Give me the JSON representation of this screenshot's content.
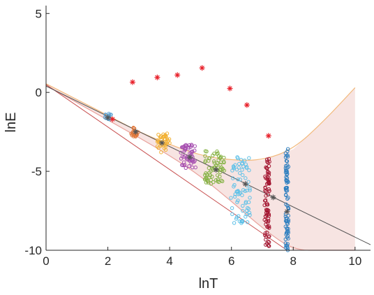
{
  "chart_data": {
    "type": "scatter",
    "title": "",
    "xlabel": "lnT",
    "ylabel": "lnE",
    "xlim": [
      0,
      10.5
    ],
    "ylim": [
      -10,
      5.5
    ],
    "xticks": [
      0,
      2,
      4,
      6,
      8,
      10
    ],
    "yticks": [
      -10,
      -5,
      0,
      5
    ],
    "grid": false,
    "legend": "none",
    "clusters": [
      {
        "x": 2.0,
        "y_min": -1.8,
        "y_max": -1.35,
        "spread": 0.12,
        "color": "#5aa0d0",
        "count": 14
      },
      {
        "x": 2.85,
        "y_min": -2.8,
        "y_max": -2.2,
        "spread": 0.14,
        "color": "#e0783c",
        "count": 20
      },
      {
        "x": 3.8,
        "y_min": -3.8,
        "y_max": -2.6,
        "spread": 0.2,
        "color": "#f2b134",
        "count": 40
      },
      {
        "x": 4.6,
        "y_min": -4.8,
        "y_max": -3.3,
        "spread": 0.25,
        "color": "#a64fb0",
        "count": 55
      },
      {
        "x": 5.45,
        "y_min": -5.8,
        "y_max": -3.7,
        "spread": 0.32,
        "color": "#86b346",
        "count": 70
      },
      {
        "x": 6.3,
        "y_min": -8.3,
        "y_max": -4.0,
        "spread": 0.32,
        "color": "#5ec1e8",
        "count": 75
      },
      {
        "x": 7.15,
        "y_min": -9.8,
        "y_max": -4.2,
        "spread": 0.08,
        "color": "#a2142f",
        "count": 80
      },
      {
        "x": 7.8,
        "y_min": -10.0,
        "y_max": -3.3,
        "spread": 0.05,
        "color": "#2f7fbf",
        "count": 80
      }
    ],
    "red_stars": [
      {
        "x": 2.15,
        "y": -1.7
      },
      {
        "x": 2.8,
        "y": 0.65
      },
      {
        "x": 3.6,
        "y": 0.95
      },
      {
        "x": 4.25,
        "y": 1.1
      },
      {
        "x": 5.05,
        "y": 1.55
      },
      {
        "x": 5.95,
        "y": 0.25
      },
      {
        "x": 6.5,
        "y": -0.8
      },
      {
        "x": 7.2,
        "y": -2.75
      }
    ],
    "gray_stars": [
      {
        "x": 2.0,
        "y": -1.6
      },
      {
        "x": 2.9,
        "y": -2.5
      },
      {
        "x": 3.75,
        "y": -3.2
      },
      {
        "x": 4.65,
        "y": -4.1
      },
      {
        "x": 5.5,
        "y": -4.9
      },
      {
        "x": 6.45,
        "y": -5.8
      },
      {
        "x": 7.35,
        "y": -6.65
      },
      {
        "x": 7.8,
        "y": -7.55
      }
    ],
    "fit_line": {
      "x": [
        0,
        10.5
      ],
      "y": [
        0.4,
        -9.65
      ],
      "color": "#505050"
    },
    "confidence_band": {
      "upper": {
        "x": [
          0,
          2,
          3,
          4,
          5,
          6,
          7,
          8,
          9,
          10
        ],
        "y": [
          0.55,
          -1.45,
          -2.5,
          -3.3,
          -4.0,
          -4.3,
          -4.3,
          -3.6,
          -1.8,
          0.3
        ]
      },
      "lower": {
        "x": [
          0,
          2,
          3,
          4,
          5,
          6,
          7,
          8,
          9,
          10
        ],
        "y": [
          0.45,
          -1.75,
          -2.85,
          -4.0,
          -5.3,
          -6.9,
          -8.6,
          -10.0,
          -10.0,
          -10.0
        ]
      },
      "fill_color": "#f3d8d6",
      "upper_line_color": "#f2b87a",
      "lower_line_color": "#e8a09a"
    },
    "extra_line": {
      "x": [
        0,
        7.8
      ],
      "y": [
        0.5,
        -10.0
      ],
      "color": "#c85050"
    }
  }
}
